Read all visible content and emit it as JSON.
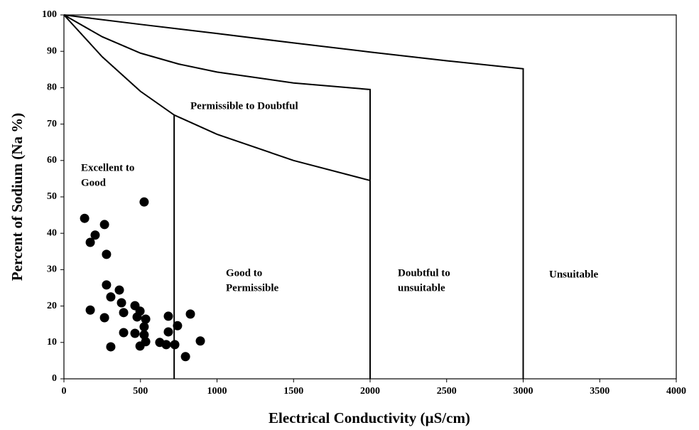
{
  "chart_data": {
    "type": "scatter",
    "xlabel": "Electrical Conductivity  (µS/cm)",
    "ylabel": "Percent of Sodium (Na %)",
    "x": [
      135,
      204,
      172,
      265,
      278,
      524,
      278,
      362,
      306,
      376,
      172,
      265,
      390,
      464,
      497,
      478,
      534,
      524,
      524,
      464,
      390,
      306,
      497,
      534,
      626,
      668,
      682,
      682,
      724,
      742,
      794,
      826,
      891
    ],
    "values": [
      44.1,
      39.5,
      37.5,
      42.4,
      34.2,
      48.6,
      25.8,
      24.4,
      22.5,
      20.9,
      18.9,
      16.8,
      18.2,
      20.1,
      18.6,
      17.0,
      16.4,
      14.3,
      12.1,
      12.5,
      12.7,
      8.8,
      9.0,
      10.2,
      10.0,
      9.4,
      12.9,
      17.2,
      9.4,
      14.6,
      6.1,
      17.8,
      10.4
    ],
    "color": "#000000",
    "boundaries": [
      {
        "x": [
          0,
          500,
          1000,
          1500,
          2000,
          2500,
          3000,
          3000
        ],
        "y": [
          100,
          97.4,
          94.9,
          92.3,
          89.8,
          87.4,
          85.2,
          0
        ]
      },
      {
        "x": [
          0,
          250,
          500,
          750,
          1000,
          1500,
          2000,
          2000
        ],
        "y": [
          100,
          94,
          89.5,
          86.5,
          84.3,
          81.3,
          79.5,
          0
        ]
      },
      {
        "x": [
          0,
          250,
          500,
          720,
          1000,
          1500,
          2000,
          2000
        ],
        "y": [
          100,
          88.5,
          79,
          72.5,
          67.2,
          60,
          54.5,
          0
        ]
      },
      {
        "x": [
          720,
          720
        ],
        "y": [
          72.5,
          0
        ]
      }
    ],
    "annotations": [
      [
        "Permissible to Doubtful"
      ],
      [
        "Excellent to",
        "Good"
      ],
      [
        "Good to",
        "Permissible"
      ],
      [
        "Doubtful to",
        "unsuitable"
      ],
      [
        "Unsuitable"
      ]
    ],
    "xlim": [
      0,
      4000
    ],
    "xticks": [
      0,
      500,
      1000,
      1500,
      2000,
      2500,
      3000,
      3500,
      4000
    ],
    "ylim": [
      0,
      100
    ],
    "yticks": [
      0,
      10,
      20,
      30,
      40,
      50,
      60,
      70,
      80,
      90,
      100
    ],
    "grid": false
  }
}
